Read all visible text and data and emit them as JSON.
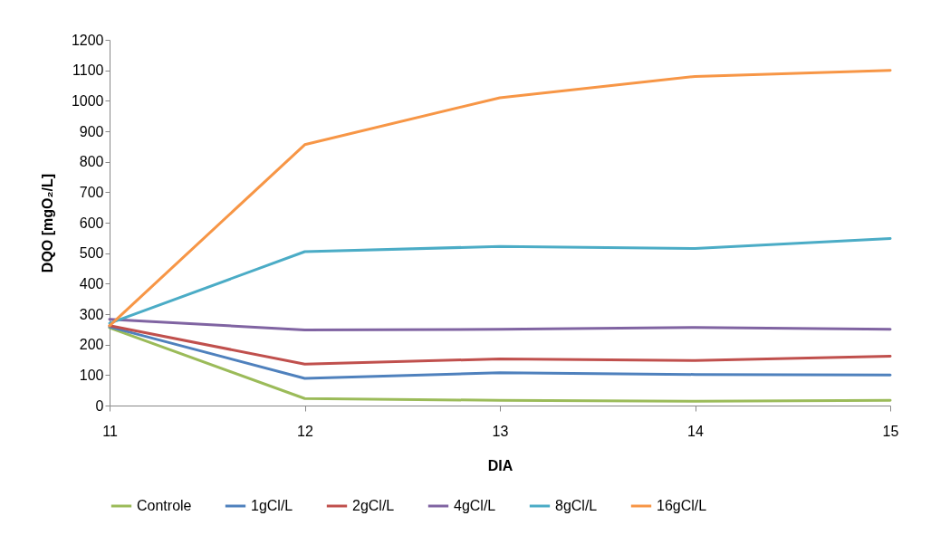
{
  "chart_data": {
    "type": "line",
    "xlabel": "DIA",
    "ylabel": "DQO [mgO₂/L]",
    "x": [
      11,
      12,
      13,
      14,
      15
    ],
    "xlim": [
      11,
      15
    ],
    "xticks": [
      11,
      12,
      13,
      14,
      15
    ],
    "ylim": [
      0,
      1200
    ],
    "yticks": [
      0,
      100,
      200,
      300,
      400,
      500,
      600,
      700,
      800,
      900,
      1000,
      1100,
      1200
    ],
    "legend": "bottom",
    "marker": "none",
    "series": [
      {
        "name": "Controle",
        "color": "#9bbb59",
        "values": [
          255,
          23,
          17,
          14,
          17
        ]
      },
      {
        "name": "1gCl/L",
        "color": "#4f81bd",
        "values": [
          258,
          89,
          108,
          102,
          100
        ]
      },
      {
        "name": "2gCl/L",
        "color": "#c0504d",
        "values": [
          262,
          136,
          153,
          148,
          162
        ]
      },
      {
        "name": "4gCl/L",
        "color": "#8064a2",
        "values": [
          283,
          248,
          250,
          256,
          250
        ]
      },
      {
        "name": "8gCl/L",
        "color": "#4bacc6",
        "values": [
          270,
          505,
          522,
          515,
          548
        ]
      },
      {
        "name": "16gCl/L",
        "color": "#f79646",
        "values": [
          262,
          856,
          1010,
          1080,
          1100
        ]
      }
    ]
  }
}
